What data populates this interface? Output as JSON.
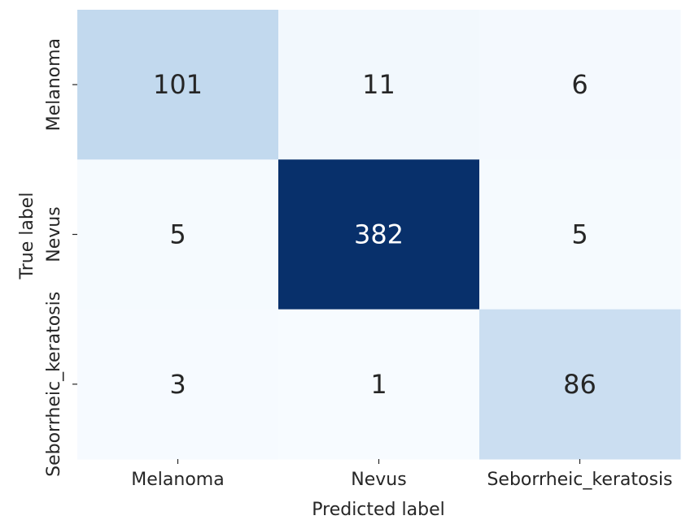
{
  "chart_data": {
    "type": "heatmap",
    "title": "",
    "xlabel": "Predicted label",
    "ylabel": "True label",
    "x_categories": [
      "Melanoma",
      "Nevus",
      "Seborrheic_keratosis"
    ],
    "y_categories": [
      "Melanoma",
      "Nevus",
      "Seborrheic_keratosis"
    ],
    "values": [
      [
        101,
        11,
        6
      ],
      [
        5,
        382,
        5
      ],
      [
        3,
        1,
        86
      ]
    ],
    "colormap": "Blues",
    "colorbar": false,
    "grid": false,
    "color_low": "#f7fbff",
    "color_high": "#08306b",
    "text_dark": "#262626",
    "text_light": "#ffffff"
  }
}
